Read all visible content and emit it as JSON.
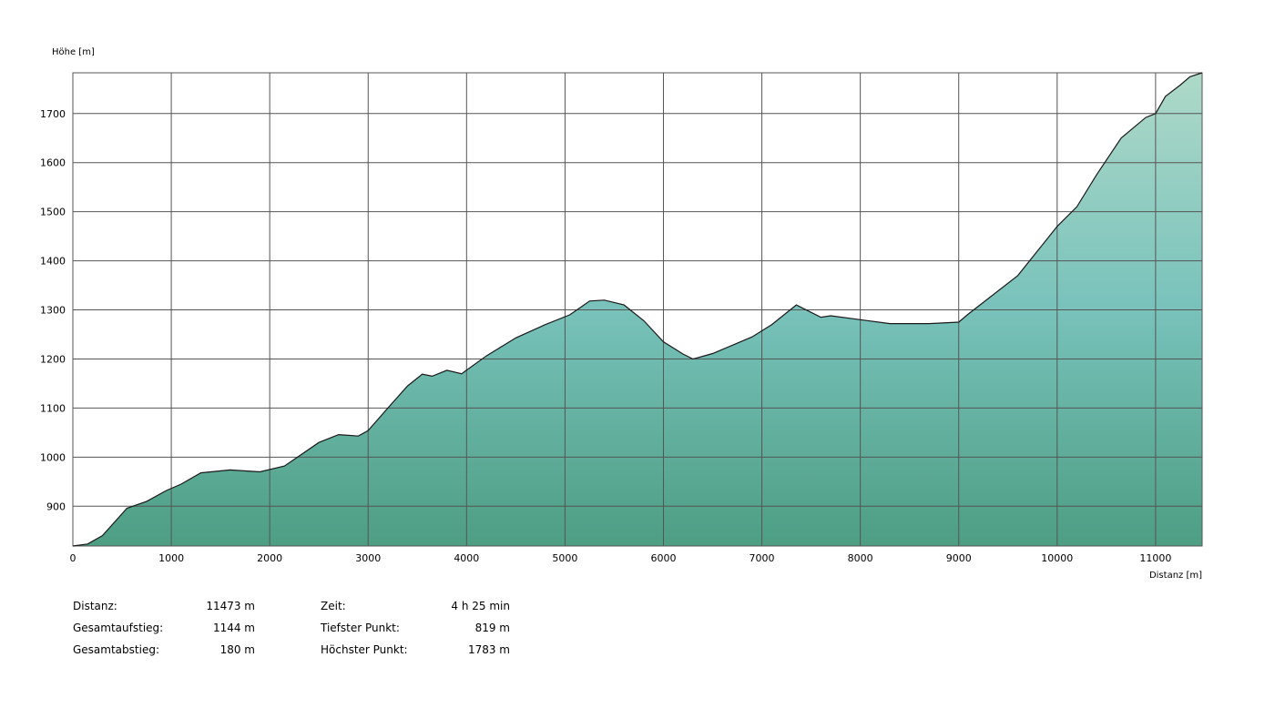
{
  "colors": {
    "fill_top": "#aed9c8",
    "fill_mid": "#78c2bb",
    "fill_bottom": "#4d9e83",
    "grid": "#555555",
    "line": "#1a1a1a"
  },
  "chart_data": {
    "type": "area",
    "ylabel": "Höhe [m]",
    "xlabel": "Distanz [m]",
    "xlim": [
      0,
      11473
    ],
    "ylim": [
      819,
      1783
    ],
    "x_ticks": [
      "0",
      "1000",
      "2000",
      "3000",
      "4000",
      "5000",
      "6000",
      "7000",
      "8000",
      "9000",
      "10000",
      "11000"
    ],
    "y_ticks": [
      "900",
      "1000",
      "1100",
      "1200",
      "1300",
      "1400",
      "1500",
      "1600",
      "1700"
    ],
    "x_tick_values": [
      0,
      1000,
      2000,
      3000,
      4000,
      5000,
      6000,
      7000,
      8000,
      9000,
      10000,
      11000
    ],
    "y_tick_values": [
      900,
      1000,
      1100,
      1200,
      1300,
      1400,
      1500,
      1600,
      1700
    ],
    "grid": true,
    "series": [
      {
        "x": [
          0,
          150,
          300,
          550,
          750,
          950,
          1100,
          1300,
          1600,
          1900,
          2150,
          2500,
          2700,
          2900,
          3000,
          3200,
          3400,
          3550,
          3650,
          3800,
          3950,
          4200,
          4500,
          4800,
          5050,
          5250,
          5400,
          5600,
          5800,
          6000,
          6200,
          6300,
          6500,
          6700,
          6900,
          7100,
          7350,
          7600,
          7700,
          8000,
          8300,
          8700,
          9000,
          9100,
          9600,
          9800,
          10000,
          10200,
          10400,
          10650,
          10900,
          11000,
          11100,
          11250,
          11350,
          11473
        ],
        "y": [
          819,
          823,
          840,
          896,
          910,
          932,
          945,
          968,
          974,
          970,
          982,
          1030,
          1046,
          1043,
          1054,
          1100,
          1145,
          1169,
          1165,
          1177,
          1170,
          1206,
          1243,
          1270,
          1290,
          1318,
          1320,
          1310,
          1278,
          1235,
          1210,
          1200,
          1211,
          1228,
          1245,
          1270,
          1310,
          1285,
          1288,
          1280,
          1272,
          1272,
          1275,
          1292,
          1370,
          1420,
          1470,
          1510,
          1575,
          1650,
          1692,
          1700,
          1735,
          1758,
          1775,
          1783
        ]
      }
    ]
  },
  "stats": {
    "left": [
      {
        "label": "Distanz:",
        "value": "11473 m"
      },
      {
        "label": "Gesamtaufstieg:",
        "value": "1144 m"
      },
      {
        "label": "Gesamtabstieg:",
        "value": "180 m"
      }
    ],
    "right": [
      {
        "label": "Zeit:",
        "value": "4 h 25 min"
      },
      {
        "label": "Tiefster Punkt:",
        "value": "819 m"
      },
      {
        "label": "Höchster Punkt:",
        "value": "1783 m"
      }
    ]
  }
}
